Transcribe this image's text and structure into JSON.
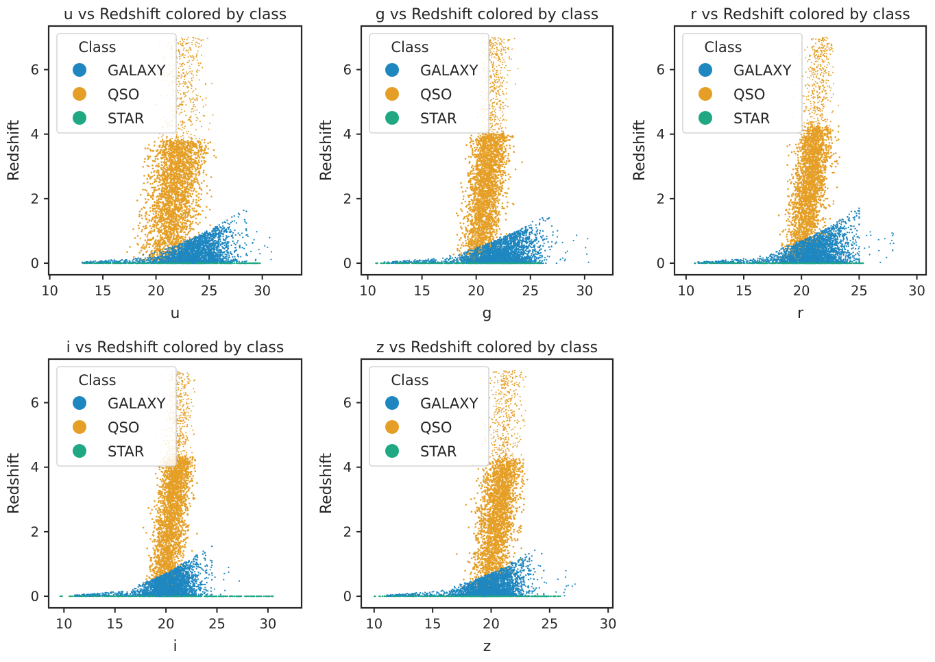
{
  "chart_data": [
    {
      "type": "scatter",
      "title": "u vs Redshift colored by class",
      "xlabel": "u",
      "ylabel": "Redshift",
      "xlim": [
        9.9,
        33.7
      ],
      "ylim": [
        -0.36,
        7.35
      ],
      "xticks": [
        10,
        15,
        20,
        25,
        30
      ],
      "yticks": [
        0,
        2,
        4,
        6
      ],
      "legend": {
        "title": "Class",
        "placement": "top-left",
        "entries": [
          "GALAXY",
          "QSO",
          "STAR"
        ]
      },
      "series": [
        {
          "name": "QSO",
          "summary": {
            "x_center": 21.5,
            "x_spread": 1.5,
            "x_min": 16.5,
            "x_max": 27.5,
            "z_min": 0.1,
            "z_max": 7.0,
            "z_core_max": 3.8
          }
        },
        {
          "name": "GALAXY",
          "summary": {
            "x_center": 24.0,
            "x_spread": 1.6,
            "x_min": 13.0,
            "x_max": 28.5,
            "z_min": 0.0,
            "z_max": 1.7
          }
        },
        {
          "name": "STAR",
          "summary": {
            "x_min": 12.0,
            "x_max": 30.0,
            "z_value": 0.0
          }
        }
      ]
    },
    {
      "type": "scatter",
      "title": "g vs Redshift colored by class",
      "xlabel": "g",
      "ylabel": "Redshift",
      "xlim": [
        9.4,
        32.6
      ],
      "ylim": [
        -0.36,
        7.35
      ],
      "xticks": [
        10,
        15,
        20,
        25,
        30
      ],
      "yticks": [
        0,
        2,
        4,
        6
      ],
      "legend": {
        "title": "Class",
        "placement": "top-left",
        "entries": [
          "GALAXY",
          "QSO",
          "STAR"
        ]
      },
      "series": [
        {
          "name": "QSO",
          "summary": {
            "x_center": 20.6,
            "x_spread": 1.0,
            "x_min": 16.0,
            "x_max": 25.0,
            "z_min": 0.1,
            "z_max": 7.0,
            "z_core_max": 4.0
          }
        },
        {
          "name": "GALAXY",
          "summary": {
            "x_center": 22.5,
            "x_spread": 1.7,
            "x_min": 11.5,
            "x_max": 27.5,
            "z_min": 0.0,
            "z_max": 1.7
          }
        },
        {
          "name": "STAR",
          "summary": {
            "x_min": 10.3,
            "x_max": 26.0,
            "z_value": 0.0
          }
        }
      ]
    },
    {
      "type": "scatter",
      "title": "r vs Redshift colored by class",
      "xlabel": "r",
      "ylabel": "Redshift",
      "xlim": [
        9.0,
        30.8
      ],
      "ylim": [
        -0.36,
        7.35
      ],
      "xticks": [
        10,
        15,
        20,
        25,
        30
      ],
      "yticks": [
        0,
        2,
        4,
        6
      ],
      "legend": {
        "title": "Class",
        "placement": "top-left",
        "entries": [
          "GALAXY",
          "QSO",
          "STAR"
        ]
      },
      "series": [
        {
          "name": "QSO",
          "summary": {
            "x_center": 20.4,
            "x_spread": 0.9,
            "x_min": 16.0,
            "x_max": 24.5,
            "z_min": 0.1,
            "z_max": 7.0,
            "z_core_max": 4.2
          }
        },
        {
          "name": "GALAXY",
          "summary": {
            "x_center": 21.3,
            "x_spread": 1.5,
            "x_min": 11.0,
            "x_max": 25.0,
            "z_min": 0.0,
            "z_max": 1.7
          }
        },
        {
          "name": "STAR",
          "summary": {
            "x_min": 10.0,
            "x_max": 25.5,
            "z_value": 0.0
          }
        }
      ]
    },
    {
      "type": "scatter",
      "title": "i vs Redshift colored by class",
      "xlabel": "i",
      "ylabel": "Redshift",
      "xlim": [
        8.5,
        33.3
      ],
      "ylim": [
        -0.36,
        7.35
      ],
      "xticks": [
        10,
        15,
        20,
        25,
        30
      ],
      "yticks": [
        0,
        2,
        4,
        6
      ],
      "legend": {
        "title": "Class",
        "placement": "top-left",
        "entries": [
          "GALAXY",
          "QSO",
          "STAR"
        ]
      },
      "series": [
        {
          "name": "QSO",
          "summary": {
            "x_center": 20.2,
            "x_spread": 0.9,
            "x_min": 16.0,
            "x_max": 24.5,
            "z_min": 0.1,
            "z_max": 7.0,
            "z_core_max": 4.3
          }
        },
        {
          "name": "GALAXY",
          "summary": {
            "x_center": 20.6,
            "x_spread": 1.4,
            "x_min": 11.0,
            "x_max": 24.5,
            "z_min": 0.0,
            "z_max": 1.6
          }
        },
        {
          "name": "STAR",
          "summary": {
            "x_min": 9.5,
            "x_max": 30.5,
            "z_value": 0.0
          }
        }
      ]
    },
    {
      "type": "scatter",
      "title": "z vs Redshift colored by class",
      "xlabel": "z",
      "ylabel": "Redshift",
      "xlim": [
        8.9,
        30.4
      ],
      "ylim": [
        -0.36,
        7.35
      ],
      "xticks": [
        10,
        15,
        20,
        25,
        30
      ],
      "yticks": [
        0,
        2,
        4,
        6
      ],
      "legend": {
        "title": "Class",
        "placement": "top-left",
        "entries": [
          "GALAXY",
          "QSO",
          "STAR"
        ]
      },
      "series": [
        {
          "name": "QSO",
          "summary": {
            "x_center": 20.2,
            "x_spread": 1.0,
            "x_min": 16.0,
            "x_max": 24.5,
            "z_min": 0.1,
            "z_max": 7.0,
            "z_core_max": 4.2
          }
        },
        {
          "name": "GALAXY",
          "summary": {
            "x_center": 20.2,
            "x_spread": 1.4,
            "x_min": 11.0,
            "x_max": 24.5,
            "z_min": 0.0,
            "z_max": 1.6
          }
        },
        {
          "name": "STAR",
          "summary": {
            "x_min": 9.5,
            "x_max": 26.0,
            "z_value": 0.0
          }
        }
      ]
    }
  ],
  "colors": {
    "GALAXY": "#1f87c0",
    "QSO": "#e59f27",
    "STAR": "#1fa882",
    "axis": "#262626"
  }
}
